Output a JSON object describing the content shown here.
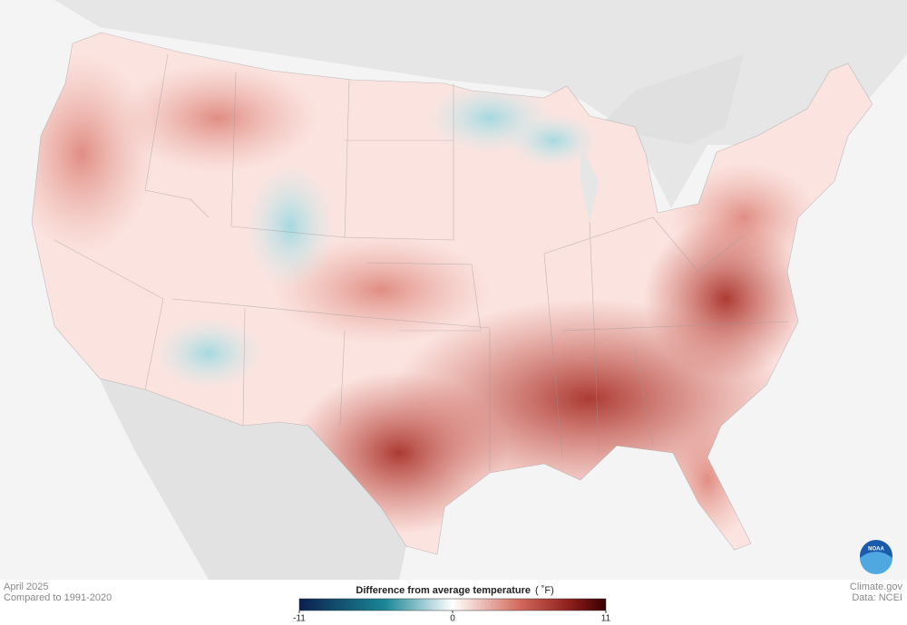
{
  "footer_left": {
    "date": "April 2025",
    "baseline": "Compared to 1991-2020"
  },
  "legend": {
    "title": "Difference from average temperature",
    "unit": "( ˚F)",
    "lim": [
      -11,
      11
    ],
    "ticks": [
      -11,
      0,
      11
    ]
  },
  "footer_right": {
    "source": "Climate.gov",
    "data": "Data: NCEI"
  },
  "logo": {
    "text": "NOAA"
  }
}
